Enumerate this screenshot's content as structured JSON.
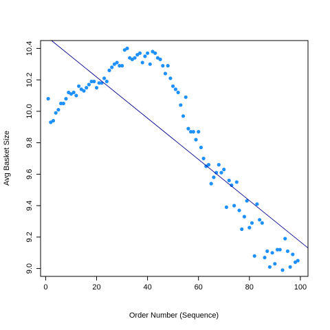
{
  "chart_data": {
    "type": "scatter",
    "title": "",
    "xlabel": "Order Number (Sequence)",
    "ylabel": "Avg Basket Size",
    "xlim": [
      -2,
      103
    ],
    "ylim": [
      8.95,
      10.45
    ],
    "x_ticks": [
      0,
      20,
      40,
      60,
      80,
      100
    ],
    "y_ticks": [
      9.0,
      9.2,
      9.4,
      9.6,
      9.8,
      10.0,
      10.2,
      10.4
    ],
    "x_tick_labels": [
      "0",
      "20",
      "40",
      "60",
      "80",
      "100"
    ],
    "y_tick_labels": [
      "9.0",
      "9.2",
      "9.4",
      "9.6",
      "9.8",
      "10.0",
      "10.2",
      "10.4"
    ],
    "grid": false,
    "point_color": "#1E90FF",
    "line_color": "#00008B",
    "trend_line": {
      "intercept": 10.48,
      "slope": -0.0131
    },
    "series": [
      {
        "x": [
          1,
          2,
          3,
          4,
          5,
          6,
          7,
          8,
          9,
          10,
          11,
          12,
          13,
          14,
          15,
          16,
          17,
          18,
          19,
          20,
          21,
          22,
          23,
          24,
          25,
          26,
          27,
          28,
          29,
          30,
          31,
          32,
          33,
          34,
          35,
          36,
          37,
          38,
          39,
          40,
          41,
          42,
          43,
          44,
          45,
          46,
          47,
          48,
          49,
          50,
          51,
          52,
          53,
          54,
          55,
          56,
          57,
          58,
          59,
          60,
          61,
          62,
          63,
          64,
          65,
          66,
          67,
          68,
          69,
          70,
          71,
          72,
          73,
          74,
          75,
          76,
          77,
          78,
          79,
          80,
          81,
          82,
          83,
          84,
          85,
          86,
          87,
          88,
          89,
          90,
          91,
          92,
          93,
          94,
          95,
          96,
          97,
          98,
          99
        ],
        "y": [
          10.08,
          9.93,
          9.94,
          9.99,
          10.01,
          10.05,
          10.05,
          10.08,
          10.12,
          10.11,
          10.12,
          10.1,
          10.16,
          10.14,
          10.13,
          10.15,
          10.17,
          10.19,
          10.19,
          10.15,
          10.18,
          10.18,
          10.21,
          10.19,
          10.26,
          10.28,
          10.3,
          10.31,
          10.29,
          10.29,
          10.39,
          10.4,
          10.34,
          10.33,
          10.34,
          10.36,
          10.37,
          10.31,
          10.35,
          10.37,
          10.3,
          10.38,
          10.37,
          10.34,
          10.33,
          10.29,
          10.24,
          10.29,
          10.21,
          10.16,
          10.14,
          10.12,
          10.04,
          9.97,
          10.09,
          9.89,
          9.87,
          9.87,
          9.82,
          9.87,
          9.77,
          9.7,
          9.65,
          9.66,
          9.54,
          9.58,
          9.61,
          9.66,
          9.61,
          9.63,
          9.39,
          9.56,
          9.53,
          9.4,
          9.55,
          9.37,
          9.25,
          9.33,
          9.43,
          9.26,
          9.29,
          9.08,
          9.41,
          9.31,
          9.29,
          9.07,
          9.11,
          9.01,
          9.1,
          9.03,
          9.12,
          9.12,
          8.99,
          9.19,
          9.11,
          9.01,
          9.09,
          9.04,
          9.05
        ]
      }
    ]
  }
}
